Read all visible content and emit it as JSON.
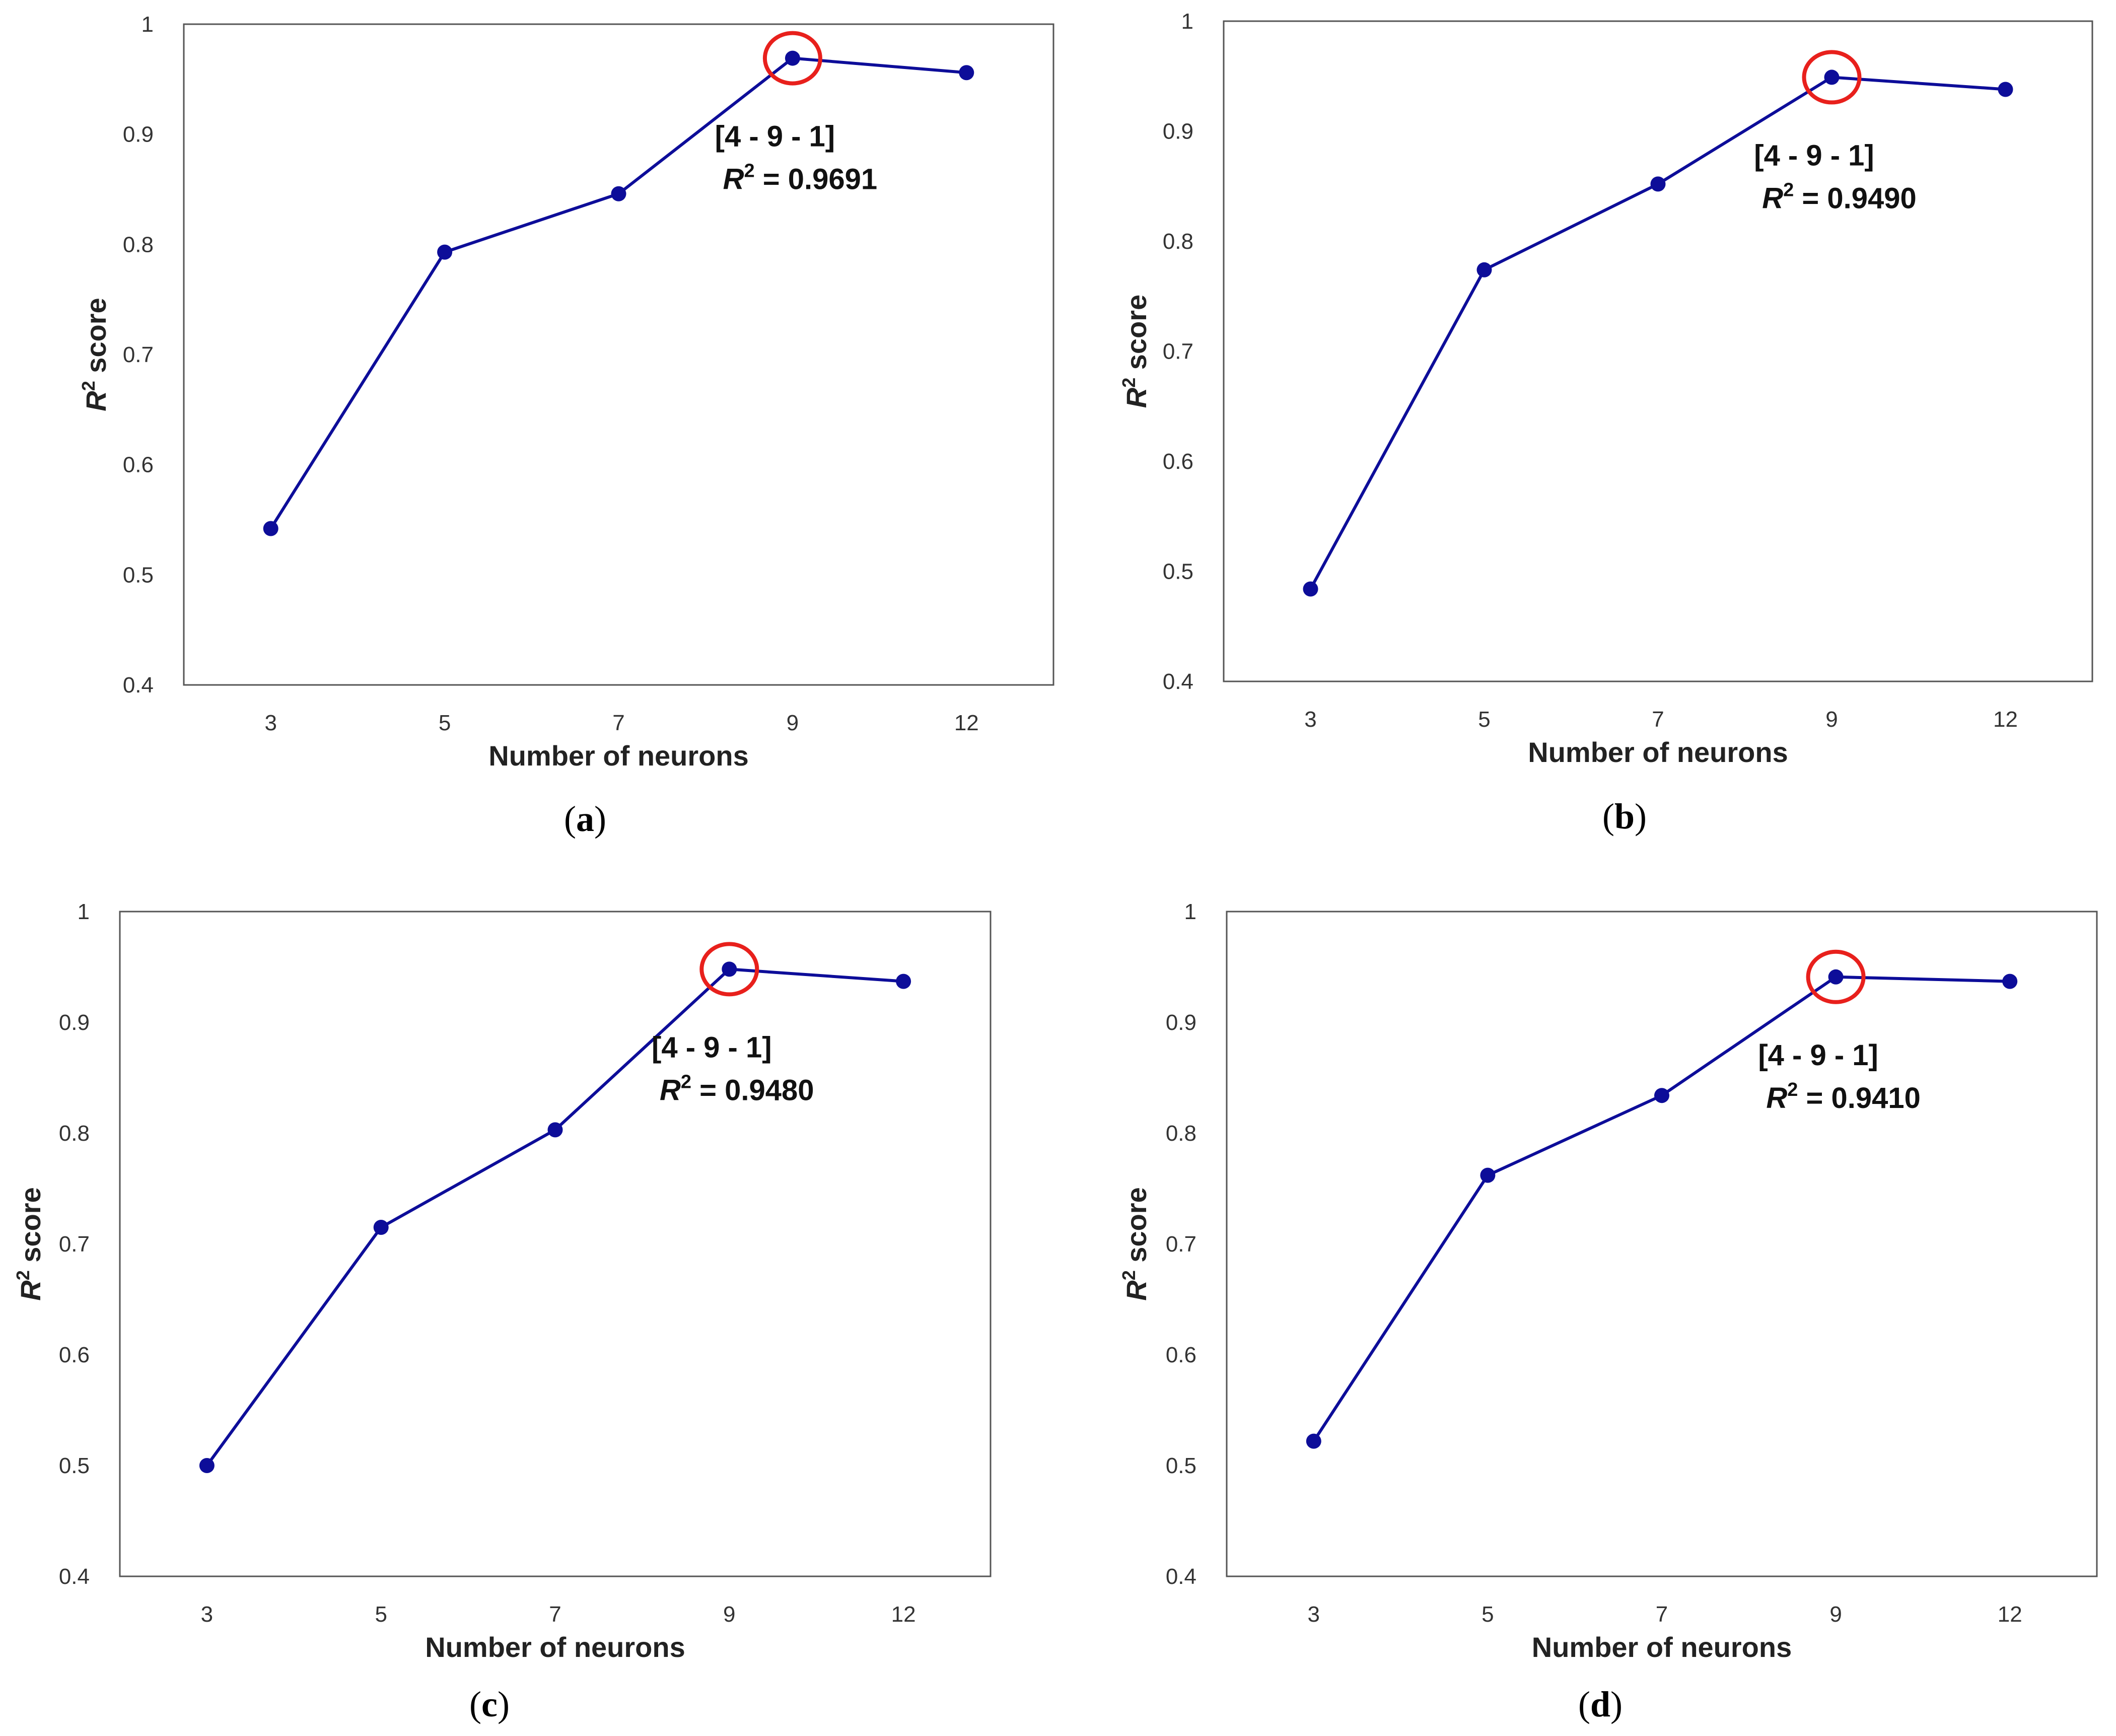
{
  "chart_data": [
    {
      "type": "line",
      "panel_label": "a",
      "xlabel": "Number of neurons",
      "ylabel": "score",
      "ylabel_symbol": "R",
      "ylabel_sup": "2",
      "categories": [
        "3",
        "5",
        "7",
        "9",
        "12"
      ],
      "values": [
        0.542,
        0.793,
        0.846,
        0.9691,
        0.956
      ],
      "ylim": [
        0.4,
        1
      ],
      "yticks": [
        "0.4",
        "0.5",
        "0.6",
        "0.7",
        "0.8",
        "0.9",
        "1"
      ],
      "highlight_index": 3,
      "annotation": {
        "topology": "[4 - 9 - 1]",
        "symbol": "R",
        "sup": "2",
        "text": " = 0.9691"
      },
      "series_color": "#0d0d99",
      "highlight_color": "#e8201c"
    },
    {
      "type": "line",
      "panel_label": "b",
      "xlabel": "Number of neurons",
      "ylabel": "score",
      "ylabel_symbol": "R",
      "ylabel_sup": "2",
      "categories": [
        "3",
        "5",
        "7",
        "9",
        "12"
      ],
      "values": [
        0.484,
        0.774,
        0.852,
        0.949,
        0.938
      ],
      "ylim": [
        0.4,
        1
      ],
      "yticks": [
        "0.4",
        "0.5",
        "0.6",
        "0.7",
        "0.8",
        "0.9",
        "1"
      ],
      "highlight_index": 3,
      "annotation": {
        "topology": "[4 - 9 - 1]",
        "symbol": "R",
        "sup": "2",
        "text": " = 0.9490"
      },
      "series_color": "#0d0d99",
      "highlight_color": "#e8201c"
    },
    {
      "type": "line",
      "panel_label": "c",
      "xlabel": "Number of neurons",
      "ylabel": "score",
      "ylabel_symbol": "R",
      "ylabel_sup": "2",
      "categories": [
        "3",
        "5",
        "7",
        "9",
        "12"
      ],
      "values": [
        0.5,
        0.715,
        0.803,
        0.948,
        0.937
      ],
      "ylim": [
        0.4,
        1
      ],
      "yticks": [
        "0.4",
        "0.5",
        "0.6",
        "0.7",
        "0.8",
        "0.9",
        "1"
      ],
      "highlight_index": 3,
      "annotation": {
        "topology": "[4 - 9 - 1]",
        "symbol": "R",
        "sup": "2",
        "text": " = 0.9480"
      },
      "series_color": "#0d0d99",
      "highlight_color": "#e8201c"
    },
    {
      "type": "line",
      "panel_label": "d",
      "xlabel": "Number of neurons",
      "ylabel": "score",
      "ylabel_symbol": "R",
      "ylabel_sup": "2",
      "categories": [
        "3",
        "5",
        "7",
        "9",
        "12"
      ],
      "values": [
        0.522,
        0.762,
        0.834,
        0.941,
        0.937
      ],
      "ylim": [
        0.4,
        1
      ],
      "yticks": [
        "0.4",
        "0.5",
        "0.6",
        "0.7",
        "0.8",
        "0.9",
        "1"
      ],
      "highlight_index": 3,
      "annotation": {
        "topology": "[4 - 9 - 1]",
        "symbol": "R",
        "sup": "2",
        "text": " = 0.9410"
      },
      "series_color": "#0d0d99",
      "highlight_color": "#e8201c"
    }
  ]
}
